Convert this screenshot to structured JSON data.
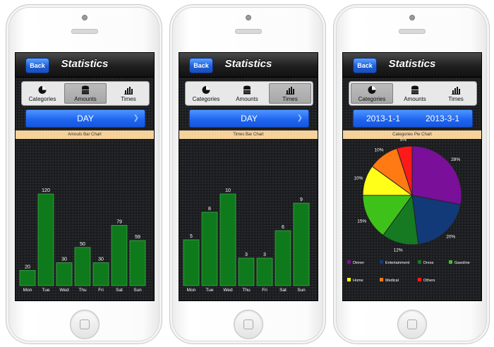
{
  "screens": [
    {
      "nav": {
        "back": "Back",
        "title": "Statistics"
      },
      "tabs": [
        {
          "label": "Categories",
          "icon": "pie-icon",
          "active": false
        },
        {
          "label": "Amounts",
          "icon": "database-icon",
          "active": true
        },
        {
          "label": "Times",
          "icon": "bar-chart-icon",
          "active": false
        }
      ],
      "selector": {
        "label": "DAY"
      },
      "chart_title": "Amouts Bar Chart"
    },
    {
      "nav": {
        "back": "Back",
        "title": "Statistics"
      },
      "tabs": [
        {
          "label": "Categories",
          "icon": "pie-icon",
          "active": false
        },
        {
          "label": "Amounts",
          "icon": "database-icon",
          "active": false
        },
        {
          "label": "Times",
          "icon": "bar-chart-icon",
          "active": true
        }
      ],
      "selector": {
        "label": "DAY"
      },
      "chart_title": "Times Bar Chart"
    },
    {
      "nav": {
        "back": "Back",
        "title": "Statistics"
      },
      "tabs": [
        {
          "label": "Categories",
          "icon": "pie-icon",
          "active": true
        },
        {
          "label": "Amounts",
          "icon": "database-icon",
          "active": false
        },
        {
          "label": "Times",
          "icon": "bar-chart-icon",
          "active": false
        }
      ],
      "selector": {
        "start": "2013-1-1",
        "end": "2013-3-1"
      },
      "chart_title": "Categories Pie Chart"
    }
  ],
  "chart_data": [
    {
      "type": "bar",
      "title": "Amouts Bar Chart",
      "categories": [
        "Mon",
        "Tue",
        "Wed",
        "Thu",
        "Fri",
        "Sat",
        "Sun"
      ],
      "values": [
        20,
        120,
        30,
        50,
        30,
        79,
        59
      ],
      "ylim": [
        0,
        120
      ],
      "bar_color": "#0f7a1c"
    },
    {
      "type": "bar",
      "title": "Times Bar Chart",
      "categories": [
        "Mon",
        "Tue",
        "Wed",
        "Thu",
        "Fri",
        "Sat",
        "Sun"
      ],
      "values": [
        5,
        8,
        10,
        3,
        3,
        6,
        9
      ],
      "ylim": [
        0,
        10
      ],
      "bar_color": "#0f7a1c"
    },
    {
      "type": "pie",
      "title": "Categories Pie Chart",
      "slices": [
        {
          "name": "Dinner",
          "value": 28,
          "label": "28%",
          "color": "#7a0f9a"
        },
        {
          "name": "Entertainment",
          "value": 20,
          "label": "20%",
          "color": "#123a78"
        },
        {
          "name": "Dress",
          "value": 12,
          "label": "12%",
          "color": "#157a22"
        },
        {
          "name": "Gasoline",
          "value": 15,
          "label": "15%",
          "color": "#3ec21a"
        },
        {
          "name": "Home",
          "value": 10,
          "label": "10%",
          "color": "#ffff1a"
        },
        {
          "name": "Medical",
          "value": 10,
          "label": "10%",
          "color": "#ff7a12"
        },
        {
          "name": "Others",
          "value": 5,
          "label": "5%",
          "color": "#ff1a1a"
        }
      ]
    }
  ]
}
